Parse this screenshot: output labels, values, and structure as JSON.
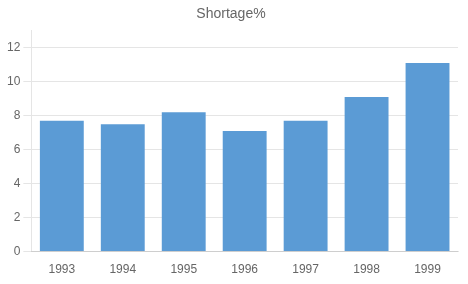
{
  "chart_data": {
    "type": "bar",
    "title": "Shortage%",
    "categories": [
      "1993",
      "1994",
      "1995",
      "1996",
      "1997",
      "1998",
      "1999"
    ],
    "values": [
      7.7,
      7.5,
      8.2,
      7.1,
      7.7,
      9.1,
      11.1
    ],
    "color": "#5b9bd5",
    "ylim": [
      0,
      13
    ],
    "yticks": [
      0,
      2,
      4,
      6,
      8,
      10,
      12
    ],
    "grid": true
  }
}
